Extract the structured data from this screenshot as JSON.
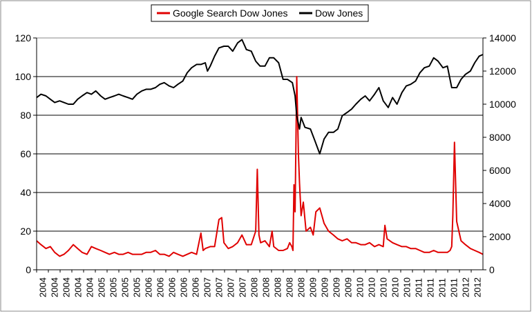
{
  "chart_data": {
    "type": "line",
    "legend": {
      "placement": "top-center",
      "entries": [
        {
          "label": "Google Search Dow Jones",
          "color": "#e00000"
        },
        {
          "label": "Dow Jones",
          "color": "#000000"
        }
      ]
    },
    "x_tick_labels": [
      "2004",
      "2004",
      "2004",
      "2004",
      "2004",
      "2005",
      "2005",
      "2005",
      "2005",
      "2006",
      "2006",
      "2006",
      "2006",
      "2006",
      "2007",
      "2007",
      "2007",
      "2007",
      "2008",
      "2008",
      "2008",
      "2008",
      "2008",
      "2009",
      "2009",
      "2009",
      "2009",
      "2010",
      "2010",
      "2010",
      "2010",
      "2010",
      "2011",
      "2011",
      "2011",
      "2011",
      "2012",
      "2012"
    ],
    "y_left": {
      "min": 0,
      "max": 120,
      "ticks": [
        "0",
        "20",
        "40",
        "60",
        "80",
        "100",
        "120"
      ]
    },
    "y_right": {
      "min": 0,
      "max": 14000,
      "ticks": [
        "0",
        "2000",
        "4000",
        "6000",
        "8000",
        "10000",
        "12000",
        "14000"
      ]
    },
    "grid": "horizontal",
    "x_range": [
      2004.0,
      2012.15
    ],
    "series": [
      {
        "name": "Google Search Dow Jones",
        "axis": "left",
        "color": "#e00000",
        "x": [
          2004.0,
          2004.08,
          2004.17,
          2004.25,
          2004.33,
          2004.42,
          2004.5,
          2004.58,
          2004.67,
          2004.75,
          2004.83,
          2004.92,
          2005.0,
          2005.08,
          2005.17,
          2005.25,
          2005.33,
          2005.42,
          2005.5,
          2005.58,
          2005.67,
          2005.75,
          2005.83,
          2005.92,
          2006.0,
          2006.08,
          2006.17,
          2006.25,
          2006.33,
          2006.42,
          2006.5,
          2006.58,
          2006.67,
          2006.75,
          2006.83,
          2006.92,
          2007.0,
          2007.04,
          2007.08,
          2007.17,
          2007.25,
          2007.33,
          2007.38,
          2007.42,
          2007.5,
          2007.58,
          2007.67,
          2007.75,
          2007.83,
          2007.92,
          2008.0,
          2008.03,
          2008.06,
          2008.09,
          2008.17,
          2008.25,
          2008.3,
          2008.33,
          2008.42,
          2008.5,
          2008.58,
          2008.62,
          2008.66,
          2008.68,
          2008.7,
          2008.72,
          2008.75,
          2008.78,
          2008.8,
          2008.83,
          2008.87,
          2008.92,
          2009.0,
          2009.05,
          2009.1,
          2009.17,
          2009.25,
          2009.33,
          2009.42,
          2009.5,
          2009.58,
          2009.67,
          2009.75,
          2009.83,
          2009.92,
          2010.0,
          2010.08,
          2010.17,
          2010.25,
          2010.33,
          2010.36,
          2010.4,
          2010.5,
          2010.58,
          2010.67,
          2010.75,
          2010.83,
          2010.92,
          2011.0,
          2011.08,
          2011.17,
          2011.25,
          2011.33,
          2011.42,
          2011.5,
          2011.55,
          2011.58,
          2011.6,
          2011.63,
          2011.67,
          2011.75,
          2011.83,
          2011.92,
          2012.0,
          2012.08,
          2012.15
        ],
        "y": [
          15,
          13,
          11,
          12,
          9,
          7,
          8,
          10,
          13,
          11,
          9,
          8,
          12,
          11,
          10,
          9,
          8,
          9,
          8,
          8,
          9,
          8,
          8,
          8,
          9,
          9,
          10,
          8,
          8,
          7,
          9,
          8,
          7,
          8,
          9,
          8,
          19,
          10,
          11,
          12,
          12,
          26,
          27,
          14,
          11,
          12,
          14,
          18,
          13,
          13,
          20,
          52,
          18,
          14,
          15,
          12,
          20,
          12,
          10,
          10,
          11,
          14,
          12,
          10,
          44,
          30,
          100,
          60,
          45,
          28,
          35,
          20,
          22,
          18,
          30,
          32,
          24,
          20,
          18,
          16,
          15,
          16,
          14,
          14,
          13,
          13,
          14,
          12,
          13,
          12,
          23,
          16,
          14,
          13,
          12,
          12,
          11,
          11,
          10,
          9,
          9,
          10,
          9,
          9,
          9,
          10,
          12,
          28,
          66,
          25,
          15,
          13,
          11,
          10,
          9,
          8
        ]
      },
      {
        "name": "Dow Jones",
        "axis": "right",
        "color": "#000000",
        "x": [
          2004.0,
          2004.08,
          2004.17,
          2004.25,
          2004.33,
          2004.42,
          2004.5,
          2004.58,
          2004.67,
          2004.75,
          2004.83,
          2004.92,
          2005.0,
          2005.08,
          2005.17,
          2005.25,
          2005.33,
          2005.42,
          2005.5,
          2005.58,
          2005.67,
          2005.75,
          2005.83,
          2005.92,
          2006.0,
          2006.08,
          2006.17,
          2006.25,
          2006.33,
          2006.42,
          2006.5,
          2006.58,
          2006.67,
          2006.75,
          2006.83,
          2006.92,
          2007.0,
          2007.08,
          2007.12,
          2007.17,
          2007.25,
          2007.33,
          2007.42,
          2007.5,
          2007.58,
          2007.67,
          2007.75,
          2007.83,
          2007.92,
          2008.0,
          2008.08,
          2008.17,
          2008.25,
          2008.33,
          2008.42,
          2008.5,
          2008.58,
          2008.67,
          2008.72,
          2008.75,
          2008.8,
          2008.83,
          2008.9,
          2009.0,
          2009.08,
          2009.17,
          2009.25,
          2009.33,
          2009.42,
          2009.5,
          2009.58,
          2009.67,
          2009.75,
          2009.83,
          2009.92,
          2010.0,
          2010.08,
          2010.17,
          2010.25,
          2010.33,
          2010.42,
          2010.5,
          2010.58,
          2010.67,
          2010.75,
          2010.83,
          2010.92,
          2011.0,
          2011.08,
          2011.17,
          2011.25,
          2011.33,
          2011.42,
          2011.5,
          2011.58,
          2011.67,
          2011.75,
          2011.83,
          2011.92,
          2012.0,
          2012.08,
          2012.15
        ],
        "y": [
          10400,
          10600,
          10500,
          10300,
          10100,
          10200,
          10100,
          10000,
          10000,
          10300,
          10500,
          10700,
          10600,
          10800,
          10500,
          10300,
          10400,
          10500,
          10600,
          10500,
          10400,
          10300,
          10600,
          10800,
          10900,
          10900,
          11000,
          11200,
          11300,
          11100,
          11000,
          11200,
          11400,
          11900,
          12200,
          12400,
          12400,
          12500,
          12000,
          12300,
          12900,
          13400,
          13500,
          13500,
          13200,
          13700,
          13900,
          13300,
          13200,
          12600,
          12300,
          12300,
          12800,
          12800,
          12500,
          11500,
          11500,
          11300,
          10500,
          9300,
          8500,
          9200,
          8600,
          8500,
          7800,
          7000,
          7900,
          8300,
          8300,
          8500,
          9300,
          9500,
          9700,
          10000,
          10300,
          10500,
          10200,
          10600,
          11000,
          10200,
          9800,
          10400,
          10000,
          10700,
          11100,
          11200,
          11400,
          11900,
          12200,
          12300,
          12800,
          12600,
          12200,
          12300,
          11000,
          11000,
          11500,
          11800,
          12000,
          12500,
          12900,
          13000
        ]
      }
    ]
  }
}
